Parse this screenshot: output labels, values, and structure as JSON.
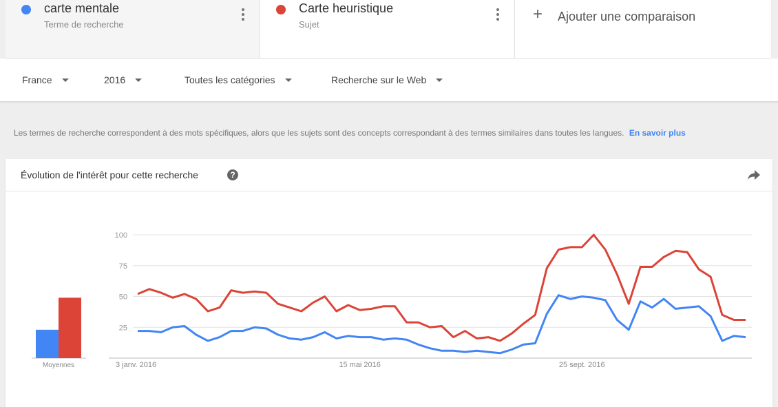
{
  "compare": {
    "terms": [
      {
        "name": "carte mentale",
        "type": "Terme de recherche",
        "color": "#4285f4"
      },
      {
        "name": "Carte heuristique",
        "type": "Sujet",
        "color": "#db4437"
      }
    ],
    "add_label": "Ajouter une comparaison"
  },
  "filters": {
    "region": "France",
    "period": "2016",
    "category": "Toutes les catégories",
    "search_type": "Recherche sur le Web"
  },
  "info": {
    "text": "Les termes de recherche correspondent à des mots spécifiques, alors que les sujets sont des concepts correspondant à des termes similaires dans toutes les langues.",
    "link": "En savoir plus"
  },
  "card": {
    "title": "Évolution de l'intérêt pour cette recherche",
    "averages_label": "Moyennes"
  },
  "chart_data": {
    "type": "line",
    "ylim": [
      0,
      100
    ],
    "yticks": [
      25,
      50,
      75,
      100
    ],
    "x_labels": [
      {
        "index": 0,
        "label": "3 janv. 2016"
      },
      {
        "index": 19,
        "label": "15 mai 2016"
      },
      {
        "index": 38,
        "label": "25 sept. 2016"
      }
    ],
    "n_points": 53,
    "averages": [
      23,
      49
    ],
    "series": [
      {
        "name": "carte mentale",
        "color": "#4285f4",
        "values": [
          22,
          22,
          21,
          25,
          26,
          19,
          14,
          17,
          22,
          22,
          25,
          24,
          19,
          16,
          15,
          17,
          21,
          16,
          18,
          17,
          17,
          15,
          16,
          15,
          11,
          8,
          6,
          6,
          5,
          6,
          5,
          4,
          7,
          11,
          12,
          36,
          51,
          48,
          50,
          49,
          47,
          31,
          23,
          46,
          41,
          48,
          40,
          41,
          42,
          34,
          14,
          18,
          17
        ]
      },
      {
        "name": "Carte heuristique",
        "color": "#db4437",
        "values": [
          52,
          56,
          53,
          49,
          52,
          48,
          38,
          41,
          55,
          53,
          54,
          53,
          44,
          41,
          38,
          45,
          50,
          38,
          43,
          39,
          40,
          42,
          42,
          29,
          29,
          25,
          26,
          17,
          22,
          16,
          17,
          14,
          20,
          28,
          35,
          73,
          88,
          90,
          90,
          100,
          88,
          68,
          44,
          74,
          74,
          82,
          87,
          86,
          72,
          66,
          35,
          31,
          31
        ]
      }
    ]
  }
}
